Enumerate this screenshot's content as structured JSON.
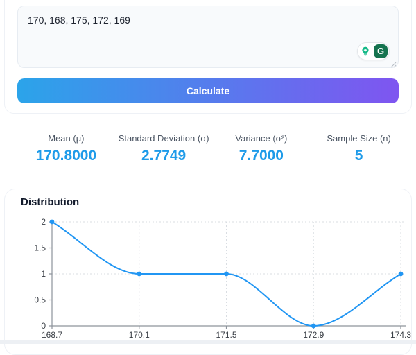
{
  "theme": {
    "accent_blue": "#1e9be9",
    "chart_line": "#2196f3",
    "button_gradient_from": "#2ba4ea",
    "button_gradient_to": "#7f55f0",
    "grammarly_teal": "#12b886",
    "grammarly_green": "#15734f"
  },
  "input": {
    "value": "170, 168, 175, 172, 169",
    "grammarly_g": "G"
  },
  "calculate_button": {
    "label": "Calculate"
  },
  "stats": [
    {
      "label": "Mean (μ)",
      "value": "170.8000"
    },
    {
      "label": "Standard Deviation (σ)",
      "value": "2.7749"
    },
    {
      "label": "Variance (σ²)",
      "value": "7.7000"
    },
    {
      "label": "Sample Size (n)",
      "value": "5"
    }
  ],
  "chart_data": {
    "type": "line",
    "title": "Distribution",
    "x": [
      168.7,
      170.1,
      171.5,
      172.9,
      174.3
    ],
    "values": [
      2,
      1,
      1,
      0,
      1
    ],
    "xlabel": "",
    "ylabel": "",
    "xlim": [
      168.7,
      174.3
    ],
    "ylim": [
      0,
      2
    ],
    "yticks": [
      0,
      0.5,
      1,
      1.5,
      2
    ],
    "grid": true,
    "legend": false,
    "smooth": true,
    "point_style": "circle"
  }
}
